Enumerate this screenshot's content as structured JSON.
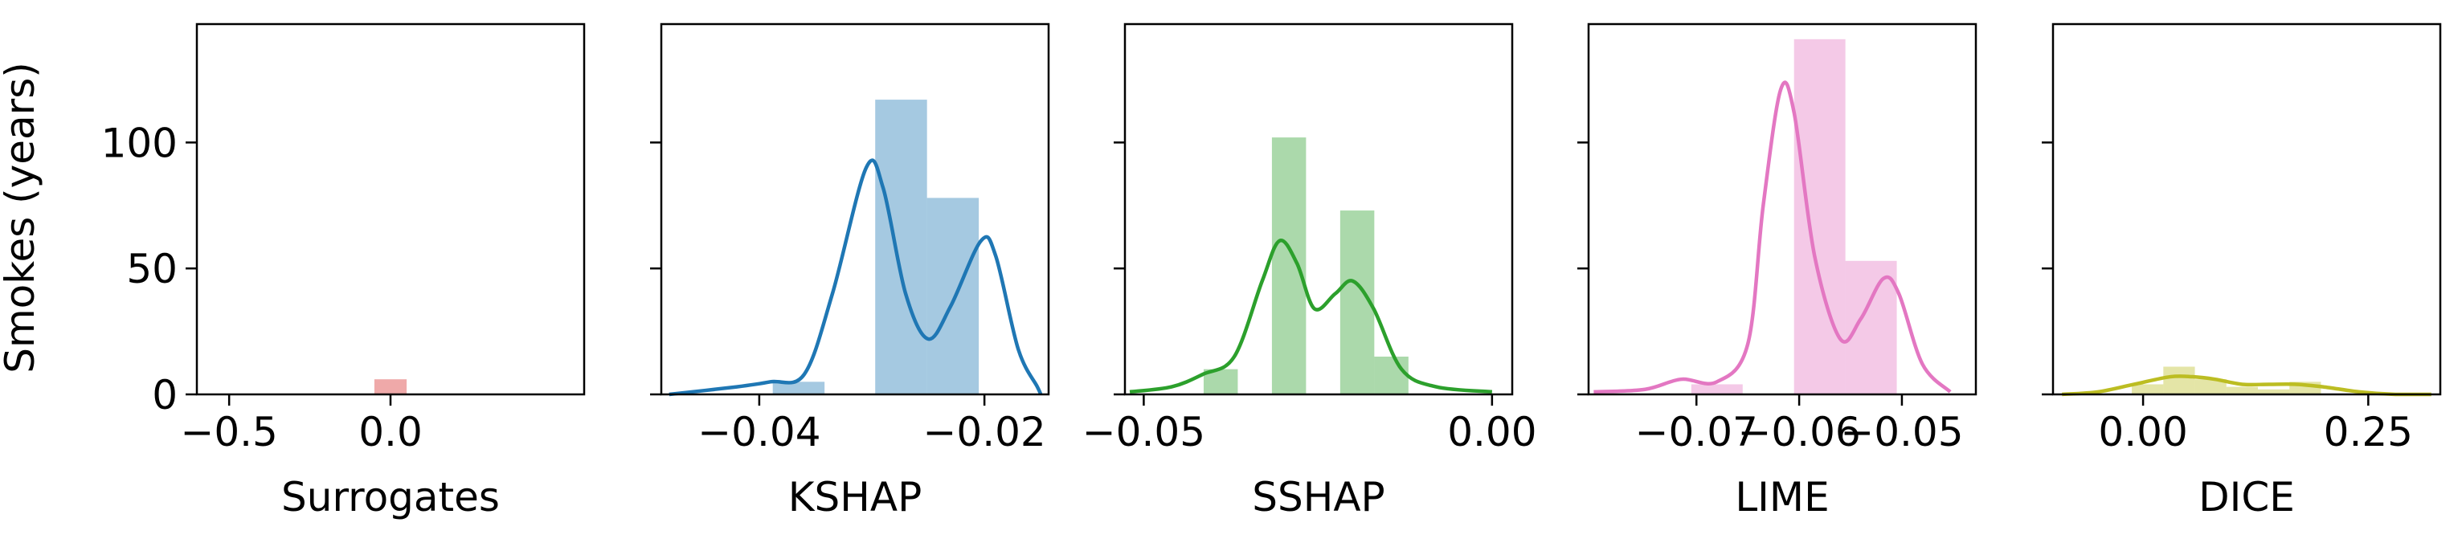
{
  "figure": {
    "ylabel": "Smokes (years)",
    "ylim": [
      0,
      147
    ],
    "yticks": [
      0,
      50,
      100
    ],
    "ytick_labels": [
      "0",
      "50",
      "100"
    ]
  },
  "chart_data": [
    {
      "type": "bar",
      "title": "",
      "xlabel": "Surrogates",
      "ylabel": "Smokes (years)",
      "color": "#d62728",
      "xlim": [
        -0.6,
        0.6
      ],
      "ylim": [
        0,
        147
      ],
      "xticks": [
        -0.5,
        0.0
      ],
      "xtick_labels": [
        "−0.5",
        "0.0"
      ],
      "bins": [
        {
          "x0": -0.05,
          "x1": 0.05,
          "count": 6
        }
      ],
      "kde": []
    },
    {
      "type": "bar",
      "title": "",
      "xlabel": "KSHAP",
      "ylabel": "",
      "color": "#1f77b4",
      "xlim": [
        -0.0487,
        -0.0143
      ],
      "ylim": [
        0,
        147
      ],
      "xticks": [
        -0.04,
        -0.02
      ],
      "xtick_labels": [
        "−0.04",
        "−0.02"
      ],
      "bins": [
        {
          "x0": -0.0388,
          "x1": -0.0342,
          "count": 5
        },
        {
          "x0": -0.0342,
          "x1": -0.0297,
          "count": 0
        },
        {
          "x0": -0.0297,
          "x1": -0.0251,
          "count": 117
        },
        {
          "x0": -0.0251,
          "x1": -0.0205,
          "count": 78
        }
      ],
      "kde": [
        [
          -0.048,
          0
        ],
        [
          -0.042,
          3
        ],
        [
          -0.039,
          5
        ],
        [
          -0.036,
          8
        ],
        [
          -0.0335,
          40
        ],
        [
          -0.0305,
          90
        ],
        [
          -0.029,
          82
        ],
        [
          -0.027,
          40
        ],
        [
          -0.025,
          22
        ],
        [
          -0.023,
          35
        ],
        [
          -0.0203,
          61
        ],
        [
          -0.019,
          55
        ],
        [
          -0.017,
          18
        ],
        [
          -0.0153,
          3
        ],
        [
          -0.015,
          0
        ]
      ]
    },
    {
      "type": "bar",
      "title": "",
      "xlabel": "SSHAP",
      "ylabel": "",
      "color": "#2ca02c",
      "xlim": [
        -0.0527,
        0.0029
      ],
      "ylim": [
        0,
        147
      ],
      "xticks": [
        -0.05,
        0.0
      ],
      "xtick_labels": [
        "−0.05",
        "0.00"
      ],
      "bins": [
        {
          "x0": -0.0414,
          "x1": -0.0365,
          "count": 10
        },
        {
          "x0": -0.0365,
          "x1": -0.0316,
          "count": 0
        },
        {
          "x0": -0.0316,
          "x1": -0.0267,
          "count": 102
        },
        {
          "x0": -0.0267,
          "x1": -0.0218,
          "count": 0
        },
        {
          "x0": -0.0218,
          "x1": -0.0169,
          "count": 73
        },
        {
          "x0": -0.0169,
          "x1": -0.012,
          "count": 15
        }
      ],
      "kde": [
        [
          -0.052,
          1
        ],
        [
          -0.046,
          3
        ],
        [
          -0.0415,
          8
        ],
        [
          -0.037,
          15
        ],
        [
          -0.033,
          45
        ],
        [
          -0.0305,
          61
        ],
        [
          -0.028,
          52
        ],
        [
          -0.0255,
          34
        ],
        [
          -0.0225,
          40
        ],
        [
          -0.02,
          45
        ],
        [
          -0.017,
          34
        ],
        [
          -0.013,
          10
        ],
        [
          -0.008,
          3
        ],
        [
          0.0,
          1
        ]
      ]
    },
    {
      "type": "bar",
      "title": "",
      "xlabel": "LIME",
      "ylabel": "",
      "color": "#e377c2",
      "xlim": [
        -0.0805,
        -0.0428
      ],
      "ylim": [
        0,
        147
      ],
      "xticks": [
        -0.07,
        -0.06,
        -0.05
      ],
      "xtick_labels": [
        "−0.07",
        "−0.06",
        "−0.05"
      ],
      "bins": [
        {
          "x0": -0.0705,
          "x1": -0.0655,
          "count": 4
        },
        {
          "x0": -0.0655,
          "x1": -0.0605,
          "count": 0
        },
        {
          "x0": -0.0605,
          "x1": -0.0555,
          "count": 141
        },
        {
          "x0": -0.0555,
          "x1": -0.0505,
          "count": 53
        }
      ],
      "kde": [
        [
          -0.08,
          1
        ],
        [
          -0.075,
          2
        ],
        [
          -0.0715,
          6
        ],
        [
          -0.068,
          5
        ],
        [
          -0.065,
          20
        ],
        [
          -0.0635,
          75
        ],
        [
          -0.0618,
          121
        ],
        [
          -0.0605,
          112
        ],
        [
          -0.0585,
          55
        ],
        [
          -0.056,
          22
        ],
        [
          -0.054,
          30
        ],
        [
          -0.0518,
          46
        ],
        [
          -0.0503,
          40
        ],
        [
          -0.048,
          12
        ],
        [
          -0.0453,
          1
        ]
      ]
    },
    {
      "type": "bar",
      "title": "",
      "xlabel": "DICE",
      "ylabel": "",
      "color": "#bcbd22",
      "xlim": [
        -0.1,
        0.33
      ],
      "ylim": [
        0,
        147
      ],
      "xticks": [
        0.0,
        0.25
      ],
      "xtick_labels": [
        "0.00",
        "0.25"
      ],
      "bins": [
        {
          "x0": -0.0125,
          "x1": 0.0225,
          "count": 4
        },
        {
          "x0": 0.0225,
          "x1": 0.0575,
          "count": 11
        },
        {
          "x0": 0.0575,
          "x1": 0.0925,
          "count": 6
        },
        {
          "x0": 0.0925,
          "x1": 0.1275,
          "count": 3
        },
        {
          "x0": 0.1275,
          "x1": 0.1625,
          "count": 2
        },
        {
          "x0": 0.1625,
          "x1": 0.1975,
          "count": 5
        }
      ],
      "kde": [
        [
          -0.09,
          0
        ],
        [
          -0.05,
          1
        ],
        [
          -0.01,
          4
        ],
        [
          0.03,
          7
        ],
        [
          0.055,
          7
        ],
        [
          0.08,
          6
        ],
        [
          0.11,
          4
        ],
        [
          0.14,
          4
        ],
        [
          0.17,
          4
        ],
        [
          0.2,
          3
        ],
        [
          0.24,
          1
        ],
        [
          0.28,
          0
        ],
        [
          0.32,
          0
        ]
      ]
    }
  ]
}
